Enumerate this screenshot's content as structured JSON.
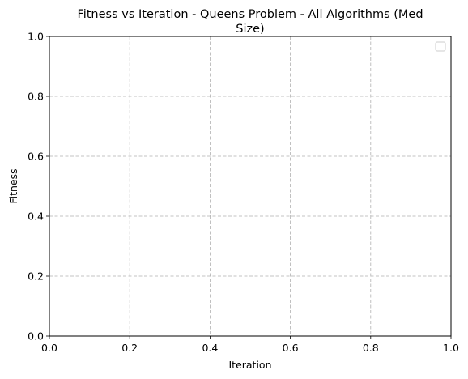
{
  "chart_data": {
    "type": "line",
    "title_lines": [
      "Fitness vs Iteration - Queens Problem - All Algorithms (Med",
      "Size)"
    ],
    "xlabel": "Iteration",
    "ylabel": "Fitness",
    "xlim": [
      0,
      1
    ],
    "ylim": [
      0,
      1
    ],
    "x_ticks": [
      0.0,
      0.2,
      0.4,
      0.6,
      0.8,
      1.0
    ],
    "y_ticks": [
      0.0,
      0.2,
      0.4,
      0.6,
      0.8,
      1.0
    ],
    "x_tick_labels": [
      "0.0",
      "0.2",
      "0.4",
      "0.6",
      "0.8",
      "1.0"
    ],
    "y_tick_labels": [
      "0.0",
      "0.2",
      "0.4",
      "0.6",
      "0.8",
      "1.0"
    ],
    "grid": true,
    "grid_style": "dashed",
    "grid_color": "#b0b0b0",
    "legend_location": "upper right",
    "legend_entries": [],
    "series": []
  }
}
